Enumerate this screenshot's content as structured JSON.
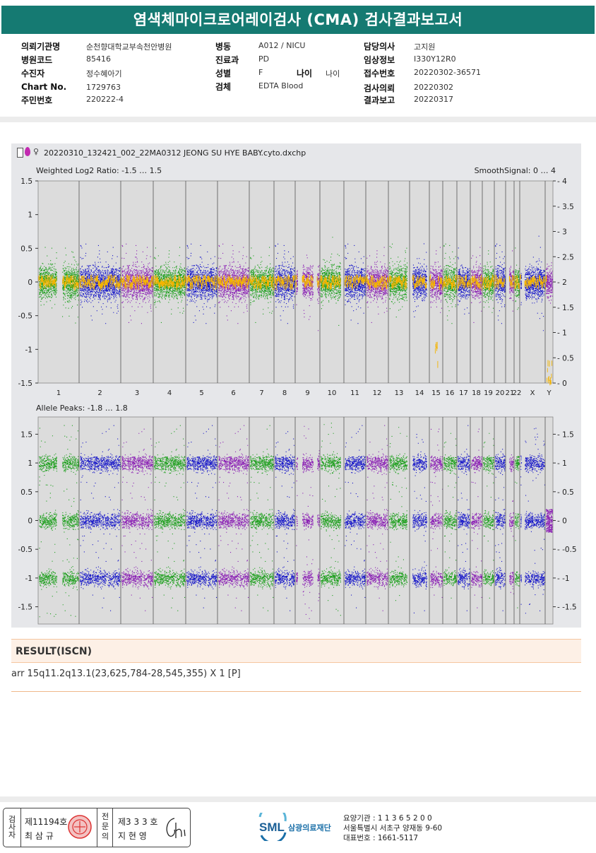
{
  "report": {
    "title": "염색체마이크로어레이검사 (CMA) 검사결과보고서"
  },
  "info": {
    "col1": [
      {
        "label": "의뢰기관명",
        "value": "순천향대학교부속천안병원"
      },
      {
        "label": "병원코드",
        "value": "85416"
      },
      {
        "label": "수진자",
        "value": "정수혜아기"
      },
      {
        "label": "Chart No.",
        "value": "1729763"
      },
      {
        "label": "주민번호",
        "value": "220222-4"
      }
    ],
    "col2": [
      {
        "label": "병동",
        "value": "A012 / NICU"
      },
      {
        "label": "진료과",
        "value": "PD"
      },
      {
        "label": "성별",
        "value": "F"
      },
      {
        "label": "검체",
        "value": "EDTA Blood"
      }
    ],
    "age_label": "나이",
    "age_value": "나이",
    "col3": [
      {
        "label": "담당의사",
        "value": "고지원"
      },
      {
        "label": "임상정보",
        "value": "I330Y12R0"
      },
      {
        "label": "접수번호",
        "value": "20220302-36571"
      },
      {
        "label": "검사의뢰",
        "value": "20220302"
      },
      {
        "label": "결과보고",
        "value": "20220317"
      }
    ]
  },
  "figure": {
    "file_symbol": "♀",
    "file_name": "20220310_132421_002_22MA0312 JEONG SU HYE BABY.cyto.dxchp",
    "panel1_label": "Weighted Log2 Ratio: -1.5 … 1.5",
    "panel1_right_label": "SmoothSignal: 0 … 4",
    "panel2_label": "Allele Peaks: -1.8 … 1.8",
    "panel1_left_ticks": [
      "1.5",
      "1",
      "0.5",
      "0",
      "-0.5",
      "-1",
      "-1.5"
    ],
    "panel1_right_ticks": [
      "4",
      "3.5",
      "3",
      "2.5",
      "2",
      "1.5",
      "1",
      "0.5",
      "0"
    ],
    "panel2_left_ticks": [
      "1.5",
      "1",
      "0.5",
      "0",
      "-0.5",
      "-1",
      "-1.5"
    ],
    "panel2_right_ticks": [
      "1.5",
      "1",
      "0.5",
      "0",
      "-0.5",
      "-1",
      "-1.5"
    ],
    "chromosomes": [
      "1",
      "2",
      "3",
      "4",
      "5",
      "6",
      "7",
      "8",
      "9",
      "10",
      "11",
      "12",
      "13",
      "14",
      "15",
      "16",
      "17",
      "18",
      "19",
      "20",
      "21",
      "22",
      "X",
      "Y"
    ],
    "colors": {
      "green": "#1a9e1a",
      "blue": "#1414c8",
      "purple": "#8a1fb4",
      "smooth": "#f4b400",
      "background": "#e6e7ea"
    }
  },
  "result": {
    "heading": "RESULT(ISCN)",
    "text": "arr 15q11.2q13.1(23,625,784-28,545,355) X 1 [P]"
  },
  "footer": {
    "box1_label": "검사자",
    "box1_no": "제11194호",
    "box1_name": "최 삼 규",
    "box2_label": "전문의",
    "box2_no": "제3 3 3 호",
    "box2_name": "지 현 영",
    "signature": "Chi",
    "brand_short": "SML",
    "brand_name": "삼광의료재단",
    "inst_line1": "요양기관 : 1 1 3 6 5 2 0 0",
    "inst_line2": "서울특별시 서초구 양재동 9-60",
    "inst_line3": "대표번호 : 1661-5117"
  }
}
